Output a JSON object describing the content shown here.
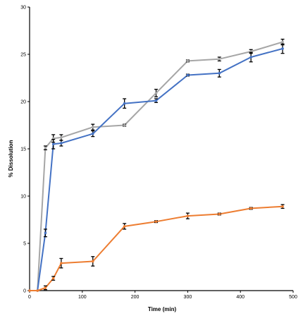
{
  "chart_data": {
    "type": "line",
    "title": "",
    "xlabel": "Time (min)",
    "ylabel": "% Dissolution",
    "xlim": [
      0,
      500
    ],
    "ylim": [
      0,
      30
    ],
    "xticks": [
      0,
      100,
      200,
      300,
      400,
      500
    ],
    "yticks": [
      0,
      5,
      10,
      15,
      20,
      25,
      30
    ],
    "grid": false,
    "legend": "none",
    "series": [
      {
        "color": "#a6a6a6",
        "x": [
          0,
          15,
          30,
          45,
          60,
          120,
          180,
          240,
          300,
          360,
          420,
          480
        ],
        "y": [
          0,
          0,
          15.1,
          16.1,
          16.2,
          17.3,
          17.5,
          20.9,
          24.3,
          24.5,
          25.3,
          26.3
        ],
        "err": [
          0,
          0,
          0.2,
          0.4,
          0.3,
          0.3,
          0.1,
          0.4,
          0.1,
          0.2,
          0.2,
          0.3
        ]
      },
      {
        "color": "#4472c4",
        "x": [
          0,
          15,
          30,
          45,
          60,
          120,
          180,
          240,
          300,
          360,
          420,
          480
        ],
        "y": [
          0,
          0,
          6.1,
          15.5,
          15.6,
          16.6,
          19.8,
          20.1,
          22.8,
          23.0,
          24.7,
          25.6
        ],
        "err": [
          0,
          0,
          0.4,
          0.5,
          0.3,
          0.3,
          0.5,
          0.2,
          0.1,
          0.4,
          0.5,
          0.5
        ]
      },
      {
        "color": "#ed7d31",
        "x": [
          0,
          15,
          30,
          45,
          60,
          120,
          180,
          240,
          300,
          360,
          420,
          480
        ],
        "y": [
          0,
          0,
          0.3,
          1.3,
          2.9,
          3.1,
          6.8,
          7.3,
          7.9,
          8.1,
          8.7,
          8.9
        ],
        "err": [
          0,
          0,
          0.2,
          0.2,
          0.5,
          0.5,
          0.3,
          0.1,
          0.3,
          0.1,
          0.1,
          0.2
        ]
      }
    ]
  }
}
